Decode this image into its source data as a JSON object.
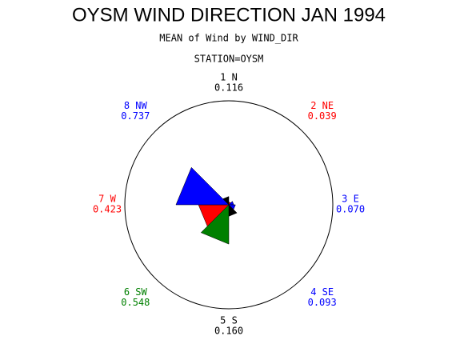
{
  "chart_data": {
    "type": "star",
    "title": "OYSM WIND DIRECTION JAN 1994",
    "subtitle": "MEAN of Wind by WIND_DIR",
    "note": "STATION=OYSM",
    "categories": [
      "1 N",
      "2 NE",
      "3 E",
      "4 SE",
      "5 S",
      "6 SW",
      "7 W",
      "8 NW"
    ],
    "values": [
      0.116,
      0.039,
      0.07,
      0.093,
      0.16,
      0.548,
      0.423,
      0.737
    ],
    "value_labels": [
      "0.116",
      "0.039",
      "0.070",
      "0.093",
      "0.160",
      "0.548",
      "0.423",
      "0.737"
    ],
    "colors": [
      "#000000",
      "#ff0000",
      "#0000ff",
      "#0000ff",
      "#000000",
      "#008000",
      "#ff0000",
      "#0000ff"
    ],
    "rlim": [
      0,
      1.45
    ]
  }
}
